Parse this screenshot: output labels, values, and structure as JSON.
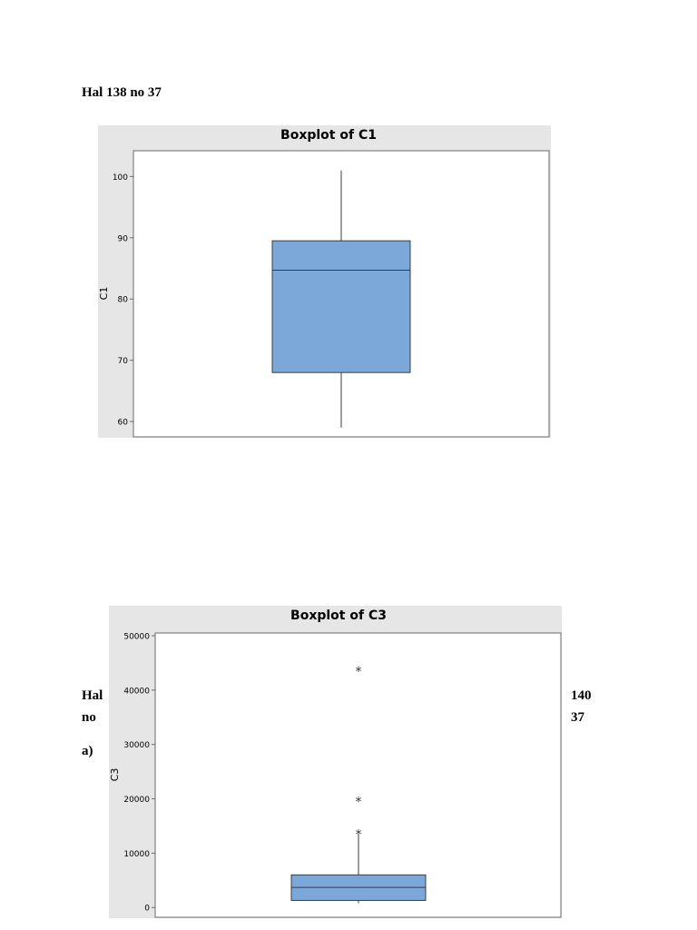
{
  "document": {
    "heading1": "Hal 138 no 37",
    "side_left": [
      "Hal",
      "no",
      "a)"
    ],
    "side_right": [
      "140",
      "37"
    ]
  },
  "colors": {
    "panel_bg": "#e6e6e6",
    "box_fill": "#7ba7d9",
    "box_stroke": "#3c3c3c",
    "axis": "#6b6b6b"
  },
  "chart_data": [
    {
      "type": "box",
      "title": "Boxplot of C1",
      "ylabel": "C1",
      "ylim": [
        57.5,
        104.2
      ],
      "yticks": [
        60,
        70,
        80,
        90,
        100
      ],
      "ytick_labels": [
        "60",
        "70",
        "80",
        "90",
        "100"
      ],
      "stats": {
        "whisker_low": 59,
        "q1": 68,
        "median": 84.7,
        "q3": 89.5,
        "whisker_high": 101
      },
      "outliers": []
    },
    {
      "type": "box",
      "title": "Boxplot of C3",
      "ylabel": "C3",
      "ylim": [
        -1800,
        50500
      ],
      "yticks": [
        0,
        10000,
        20000,
        30000,
        40000,
        50000
      ],
      "ytick_labels": [
        "0",
        "10000",
        "20000",
        "30000",
        "40000",
        "50000"
      ],
      "stats": {
        "whisker_low": 800,
        "q1": 1300,
        "median": 3700,
        "q3": 6000,
        "whisker_high": 13500
      },
      "outliers": [
        14000,
        20000,
        44000
      ]
    }
  ]
}
